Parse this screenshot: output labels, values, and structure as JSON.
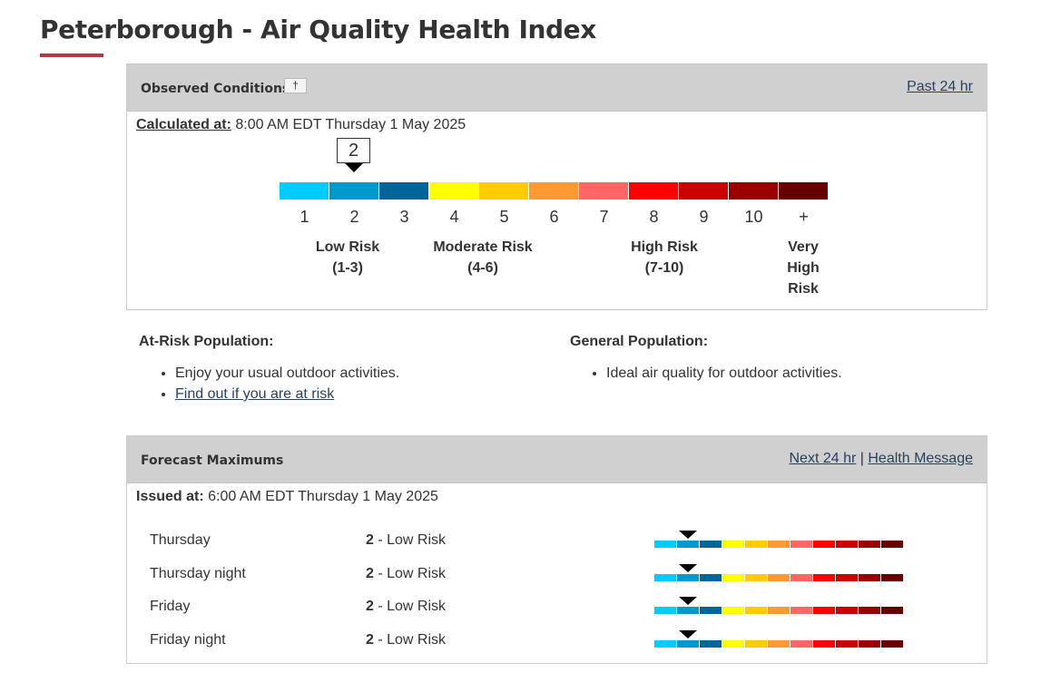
{
  "page_title": "Peterborough - Air Quality Health Index",
  "observed": {
    "title": "Observed Conditions",
    "footnote_label": "†",
    "past_link": "Past 24 hr",
    "calculated_label": "Calculated at:",
    "calculated_value": " 8:00 AM EDT Thursday 1 May 2025",
    "current_value": "2"
  },
  "scale": {
    "numbers": [
      "1",
      "2",
      "3",
      "4",
      "5",
      "6",
      "7",
      "8",
      "9",
      "10",
      "+"
    ],
    "colors": [
      "#00ccff",
      "#0099cc",
      "#006699",
      "#ffff00",
      "#ffcc00",
      "#ff9933",
      "#ff6666",
      "#ff0000",
      "#cc0000",
      "#990000",
      "#660000"
    ],
    "risk_labels": [
      {
        "line1": "Low Risk",
        "line2": "(1-3)"
      },
      {
        "line1": "Moderate Risk",
        "line2": "(4-6)"
      },
      {
        "line1": "High Risk",
        "line2": "(7-10)"
      },
      {
        "line1": "Very",
        "line2": "High",
        "line3": "Risk"
      }
    ]
  },
  "at_risk": {
    "heading": "At-Risk Population:",
    "item1": "Enjoy your usual outdoor activities.",
    "link": "Find out if you are at risk"
  },
  "general": {
    "heading": "General Population:",
    "item1": "Ideal air quality for outdoor activities."
  },
  "forecast": {
    "title": "Forecast Maximums",
    "next_link": "Next 24 hr",
    "separator": "|",
    "health_link": "Health Message",
    "issued_label": "Issued at:",
    "issued_value": " 6:00 AM EDT Thursday 1 May 2025",
    "rows": [
      {
        "day": "Thursday",
        "value": 2,
        "value_text": "2",
        "risk": " - Low Risk"
      },
      {
        "day": "Thursday night",
        "value": 2,
        "value_text": "2",
        "risk": " - Low Risk"
      },
      {
        "day": "Friday",
        "value": 2,
        "value_text": "2",
        "risk": " - Low Risk"
      },
      {
        "day": "Friday night",
        "value": 2,
        "value_text": "2",
        "risk": " - Low Risk"
      }
    ]
  }
}
